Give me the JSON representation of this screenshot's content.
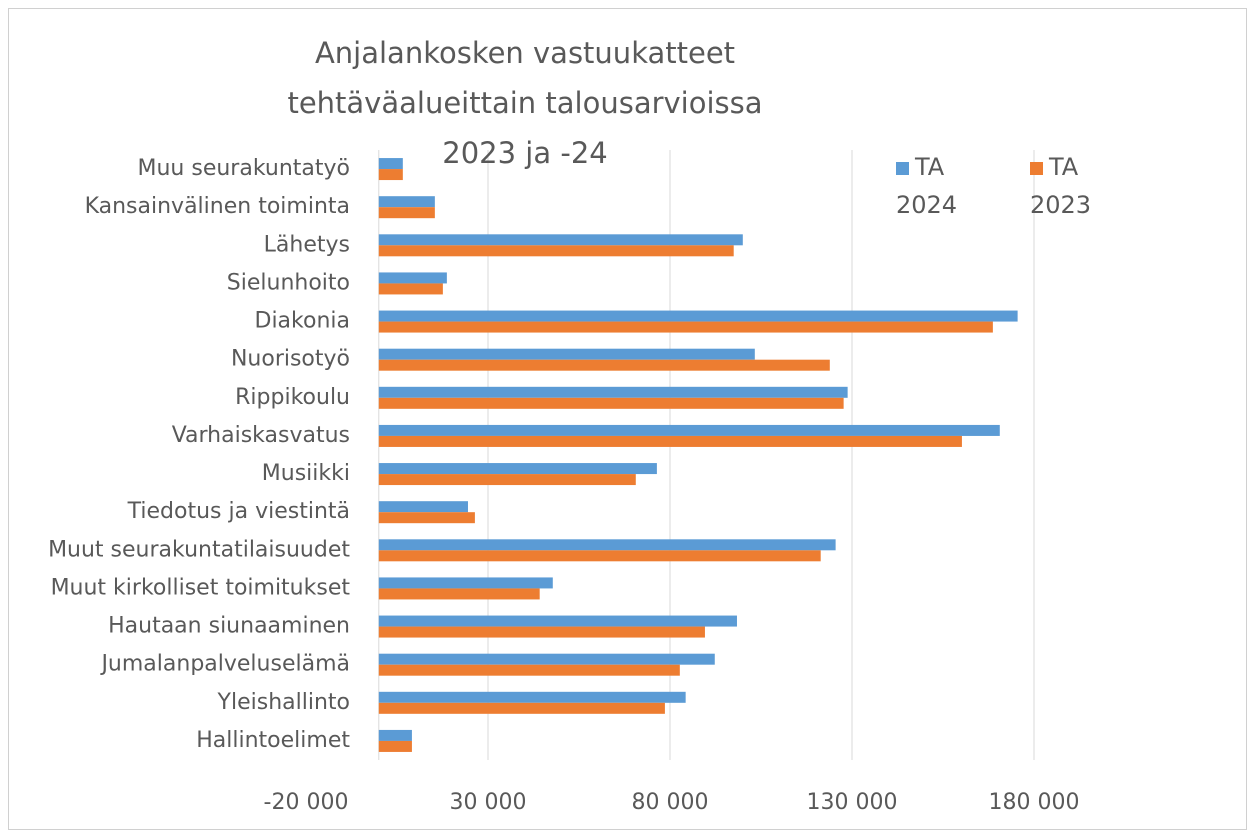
{
  "chart_data": {
    "type": "hbar",
    "title": "Anjalankosken vastuukatteet tehtäväalueittain talousarvioissa 2023 ja -24",
    "categories": [
      "Muu seurakuntatyö",
      "Kansainvälinen toiminta",
      "Lähetys",
      "Sielunhoito",
      "Diakonia",
      "Nuorisotyö",
      "Rippikoulu",
      "Varhaiskasvatus",
      "Musiikki",
      "Tiedotus ja viestintä",
      "Muut seurakuntatilaisuudet",
      "Muut kirkolliset toimitukset",
      "Hautaan siunaaminen",
      "Jumalanpalveluselämä",
      "Yleishallinto",
      "Hallintoelimet"
    ],
    "series": [
      {
        "name": "TA 2024",
        "color": "#5b9bd5",
        "values": [
          6600,
          15400,
          100000,
          18700,
          175500,
          103300,
          128800,
          170600,
          76400,
          24500,
          125500,
          47800,
          98400,
          92300,
          84300,
          9100
        ]
      },
      {
        "name": "TA 2023",
        "color": "#ed7d31",
        "values": [
          6600,
          15400,
          97500,
          17600,
          168700,
          123900,
          127700,
          160200,
          70600,
          26400,
          121400,
          44200,
          89600,
          82700,
          78600,
          9100
        ]
      }
    ],
    "xlim": [
      -20000,
      230000
    ],
    "xticks": [
      {
        "value": -20000,
        "label": "-20 000"
      },
      {
        "value": 30000,
        "label": "30 000"
      },
      {
        "value": 80000,
        "label": "80 000"
      },
      {
        "value": 130000,
        "label": "130 000"
      },
      {
        "value": 180000,
        "label": "180 000"
      }
    ],
    "grid": true,
    "legend": "top-right"
  }
}
